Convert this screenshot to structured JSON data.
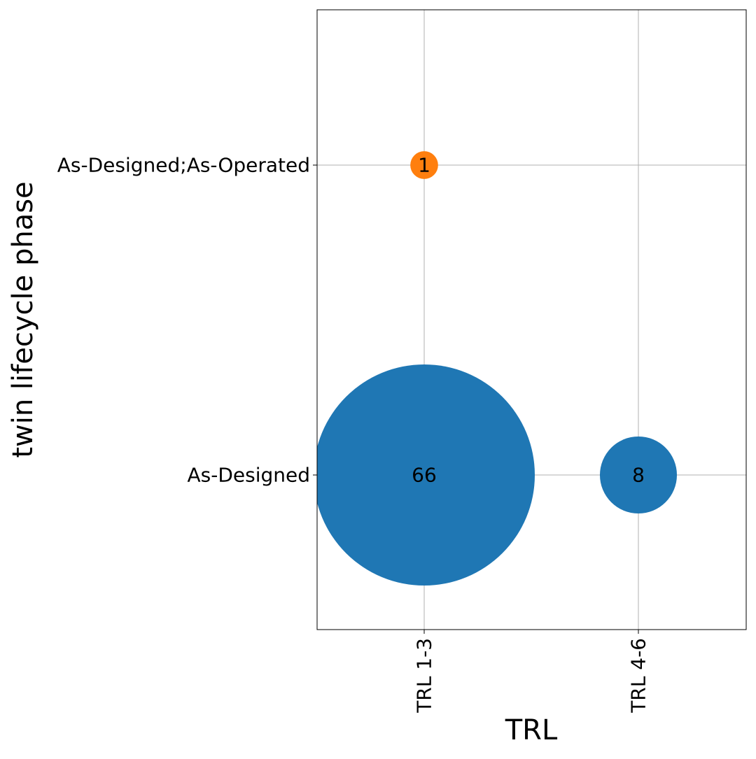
{
  "chart_data": {
    "type": "scatter",
    "xlabel": "TRL",
    "ylabel": "twin lifecycle phase",
    "x_categories": [
      "TRL 1-3",
      "TRL 4-6"
    ],
    "y_categories": [
      "As-Designed",
      "As-Designed;As-Operated"
    ],
    "grid": true,
    "legend": "none",
    "points": [
      {
        "x": "TRL 1-3",
        "y": "As-Designed;As-Operated",
        "value": 1,
        "color": "#ff7f0e"
      },
      {
        "x": "TRL 1-3",
        "y": "As-Designed",
        "value": 66,
        "color": "#1f77b4"
      },
      {
        "x": "TRL 4-6",
        "y": "As-Designed",
        "value": 8,
        "color": "#1f77b4"
      }
    ]
  }
}
